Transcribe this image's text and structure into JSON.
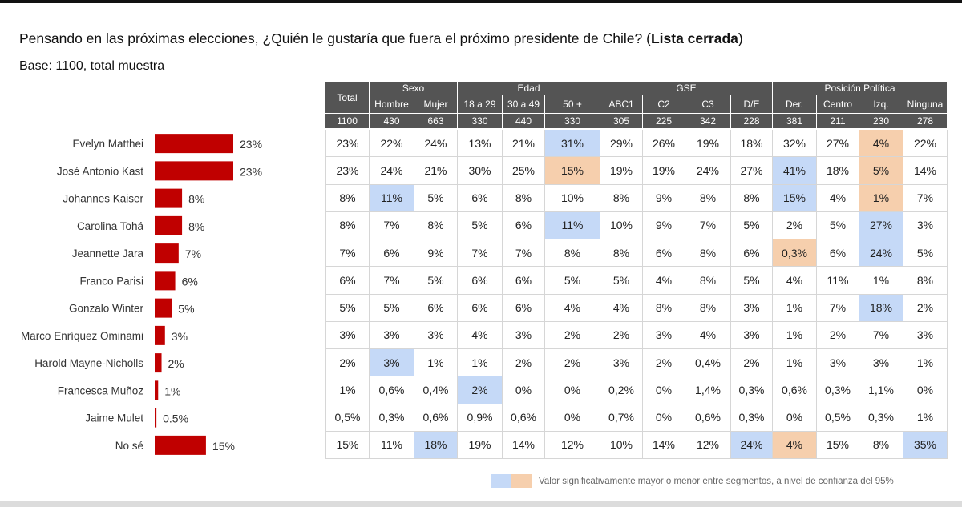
{
  "header": {
    "title_prefix": "Pensando en las próximas elecciones, ¿Quién le gustaría que fuera el próximo presidente de Chile? (",
    "title_bold": "Lista cerrada",
    "title_suffix": ")",
    "base": "Base: 1100, total muestra"
  },
  "colors": {
    "bar": "#c00000",
    "header_bg": "#545454",
    "significant_high": "#c5d9f7",
    "significant_low": "#f6cfad"
  },
  "legend": {
    "text": "Valor significativamente mayor o menor entre segmentos, a nivel de confianza del 95%"
  },
  "chart_data": {
    "type": "bar",
    "categories": [
      "Evelyn Matthei",
      "José Antonio Kast",
      "Johannes Kaiser",
      "Carolina Tohá",
      "Jeannette Jara",
      "Franco Parisi",
      "Gonzalo Winter",
      "Marco Enríquez Ominami",
      "Harold Mayne-Nicholls",
      "Francesca Muñoz",
      "Jaime Mulet",
      "No sé"
    ],
    "values": [
      23,
      23,
      8,
      8,
      7,
      6,
      5,
      3,
      2,
      1,
      0.5,
      15
    ],
    "value_labels": [
      "23%",
      "23%",
      "8%",
      "8%",
      "7%",
      "6%",
      "5%",
      "3%",
      "2%",
      "1%",
      "0.5%",
      "15%"
    ],
    "xlim": [
      0,
      23
    ]
  },
  "table": {
    "groups": [
      {
        "label": "",
        "span": 1
      },
      {
        "label": "Sexo",
        "span": 2
      },
      {
        "label": "Edad",
        "span": 3
      },
      {
        "label": "GSE",
        "span": 4
      },
      {
        "label": "Posición Política",
        "span": 4
      }
    ],
    "columns": [
      {
        "label": "Total",
        "base": "1100"
      },
      {
        "label": "Hombre",
        "base": "430"
      },
      {
        "label": "Mujer",
        "base": "663"
      },
      {
        "label": "18 a  29",
        "base": "330"
      },
      {
        "label": "30 a  49",
        "base": "440"
      },
      {
        "label": "50 +",
        "base": "330"
      },
      {
        "label": "ABC1",
        "base": "305"
      },
      {
        "label": "C2",
        "base": "225"
      },
      {
        "label": "C3",
        "base": "342"
      },
      {
        "label": "D/E",
        "base": "228"
      },
      {
        "label": "Der.",
        "base": "381"
      },
      {
        "label": "Centro",
        "base": "211"
      },
      {
        "label": "Izq.",
        "base": "230"
      },
      {
        "label": "Ninguna",
        "base": "278"
      }
    ],
    "rows": [
      {
        "values": [
          "23%",
          "22%",
          "24%",
          "13%",
          "21%",
          "31%",
          "29%",
          "26%",
          "19%",
          "18%",
          "32%",
          "27%",
          "4%",
          "22%"
        ],
        "highlight": {
          "5": "blue",
          "12": "orange"
        }
      },
      {
        "values": [
          "23%",
          "24%",
          "21%",
          "30%",
          "25%",
          "15%",
          "19%",
          "19%",
          "24%",
          "27%",
          "41%",
          "18%",
          "5%",
          "14%"
        ],
        "highlight": {
          "5": "orange",
          "10": "blue",
          "12": "orange"
        }
      },
      {
        "values": [
          "8%",
          "11%",
          "5%",
          "6%",
          "8%",
          "10%",
          "8%",
          "9%",
          "8%",
          "8%",
          "15%",
          "4%",
          "1%",
          "7%"
        ],
        "highlight": {
          "1": "blue",
          "10": "blue",
          "12": "orange"
        }
      },
      {
        "values": [
          "8%",
          "7%",
          "8%",
          "5%",
          "6%",
          "11%",
          "10%",
          "9%",
          "7%",
          "5%",
          "2%",
          "5%",
          "27%",
          "3%"
        ],
        "highlight": {
          "5": "blue",
          "12": "blue"
        }
      },
      {
        "values": [
          "7%",
          "6%",
          "9%",
          "7%",
          "7%",
          "8%",
          "8%",
          "6%",
          "8%",
          "6%",
          "0,3%",
          "6%",
          "24%",
          "5%"
        ],
        "highlight": {
          "10": "orange",
          "12": "blue"
        }
      },
      {
        "values": [
          "6%",
          "7%",
          "5%",
          "6%",
          "6%",
          "5%",
          "5%",
          "4%",
          "8%",
          "5%",
          "4%",
          "11%",
          "1%",
          "8%"
        ],
        "highlight": {}
      },
      {
        "values": [
          "5%",
          "5%",
          "6%",
          "6%",
          "6%",
          "4%",
          "4%",
          "8%",
          "8%",
          "3%",
          "1%",
          "7%",
          "18%",
          "2%"
        ],
        "highlight": {
          "12": "blue"
        }
      },
      {
        "values": [
          "3%",
          "3%",
          "3%",
          "4%",
          "3%",
          "2%",
          "2%",
          "3%",
          "4%",
          "3%",
          "1%",
          "2%",
          "7%",
          "3%"
        ],
        "highlight": {}
      },
      {
        "values": [
          "2%",
          "3%",
          "1%",
          "1%",
          "2%",
          "2%",
          "3%",
          "2%",
          "0,4%",
          "2%",
          "1%",
          "3%",
          "3%",
          "1%"
        ],
        "highlight": {
          "1": "blue"
        }
      },
      {
        "values": [
          "1%",
          "0,6%",
          "0,4%",
          "2%",
          "0%",
          "0%",
          "0,2%",
          "0%",
          "1,4%",
          "0,3%",
          "0,6%",
          "0,3%",
          "1,1%",
          "0%"
        ],
        "highlight": {
          "3": "blue"
        }
      },
      {
        "values": [
          "0,5%",
          "0,3%",
          "0,6%",
          "0,9%",
          "0,6%",
          "0%",
          "0,7%",
          "0%",
          "0,6%",
          "0,3%",
          "0%",
          "0,5%",
          "0,3%",
          "1%"
        ],
        "highlight": {}
      },
      {
        "values": [
          "15%",
          "11%",
          "18%",
          "19%",
          "14%",
          "12%",
          "10%",
          "14%",
          "12%",
          "24%",
          "4%",
          "15%",
          "8%",
          "35%"
        ],
        "highlight": {
          "2": "blue",
          "9": "blue",
          "10": "orange",
          "13": "blue"
        }
      }
    ]
  }
}
